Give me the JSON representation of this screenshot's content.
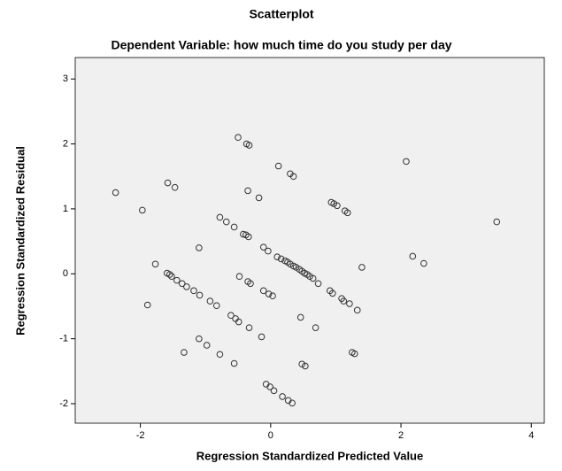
{
  "chart_data": {
    "type": "scatter",
    "title": "Scatterplot",
    "subtitle": "Dependent Variable: how much time do you study per day",
    "xlabel": "Regression Standardized Predicted Value",
    "ylabel": "Regression Standardized Residual",
    "color": "#333333",
    "background": "#f0f0f0",
    "xlim": [
      -3.0,
      4.2
    ],
    "ylim": [
      -2.3,
      3.33
    ],
    "xticks": [
      -2,
      0,
      2,
      4
    ],
    "yticks": [
      -2,
      -1,
      0,
      1,
      2,
      3
    ],
    "x": [
      -2.38,
      -1.97,
      -1.58,
      -1.47,
      -1.77,
      -1.89,
      -1.59,
      -1.55,
      -1.52,
      -1.44,
      -1.36,
      -1.29,
      -1.18,
      -1.09,
      -1.1,
      -0.93,
      -0.83,
      -1.1,
      -0.98,
      -1.33,
      -0.78,
      -0.56,
      -0.78,
      -0.68,
      -0.56,
      -0.42,
      -0.38,
      -0.34,
      -0.48,
      -0.35,
      -0.31,
      -0.61,
      -0.54,
      -0.49,
      -0.33,
      -0.14,
      -0.35,
      -0.18,
      -0.5,
      -0.37,
      -0.33,
      -0.11,
      -0.04,
      -0.11,
      -0.03,
      0.03,
      -0.07,
      -0.01,
      0.05,
      0.18,
      0.27,
      0.33,
      0.12,
      0.3,
      0.35,
      0.1,
      0.16,
      0.22,
      0.26,
      0.3,
      0.35,
      0.39,
      0.44,
      0.48,
      0.52,
      0.56,
      0.6,
      0.65,
      0.73,
      0.46,
      0.69,
      0.48,
      0.53,
      0.93,
      0.97,
      1.02,
      1.14,
      1.18,
      0.91,
      0.95,
      1.09,
      1.12,
      1.21,
      1.33,
      1.4,
      1.25,
      1.29,
      2.08,
      2.18,
      2.35,
      3.47
    ],
    "values": [
      1.25,
      0.98,
      1.4,
      1.33,
      0.15,
      -0.48,
      0.01,
      -0.01,
      -0.04,
      -0.1,
      -0.15,
      -0.2,
      -0.26,
      -0.33,
      0.4,
      -0.42,
      -0.49,
      -1.0,
      -1.1,
      -1.21,
      -1.24,
      -1.38,
      0.87,
      0.8,
      0.72,
      0.61,
      0.6,
      0.57,
      -0.04,
      -0.12,
      -0.15,
      -0.64,
      -0.69,
      -0.74,
      -0.83,
      -0.97,
      1.28,
      1.17,
      2.1,
      2.0,
      1.98,
      0.41,
      0.35,
      -0.26,
      -0.31,
      -0.34,
      -1.7,
      -1.74,
      -1.8,
      -1.89,
      -1.95,
      -1.99,
      1.66,
      1.54,
      1.5,
      0.26,
      0.23,
      0.2,
      0.18,
      0.15,
      0.12,
      0.1,
      0.07,
      0.04,
      0.01,
      -0.01,
      -0.04,
      -0.07,
      -0.15,
      -0.67,
      -0.83,
      -1.39,
      -1.42,
      1.1,
      1.08,
      1.05,
      0.97,
      0.94,
      -0.26,
      -0.3,
      -0.38,
      -0.42,
      -0.46,
      -0.56,
      0.1,
      -1.21,
      -1.23,
      1.73,
      0.27,
      0.16,
      0.8
    ]
  }
}
